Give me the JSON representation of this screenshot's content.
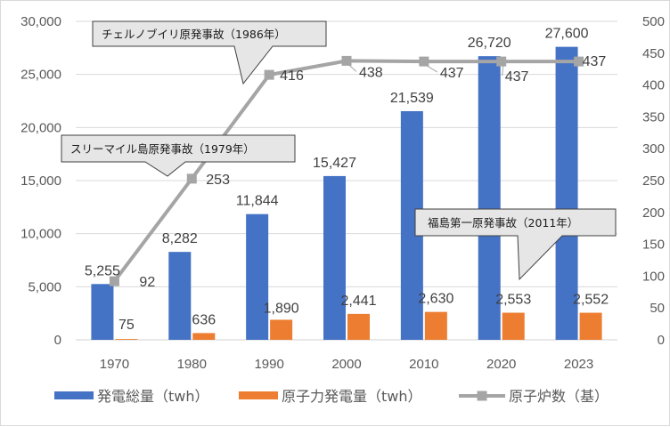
{
  "chart_data": {
    "type": "bar",
    "categories": [
      "1970",
      "1980",
      "1990",
      "2000",
      "2010",
      "2020",
      "2023"
    ],
    "series": [
      {
        "name": "発電総量（twh）",
        "kind": "bar",
        "axis": "left",
        "color": "#4472c4",
        "values": [
          5255,
          8282,
          11844,
          15427,
          21539,
          26720,
          27600
        ],
        "labels": [
          "5,255",
          "8,282",
          "11,844",
          "15,427",
          "21,539",
          "26,720",
          "27,600"
        ]
      },
      {
        "name": "原子力発電量（twh）",
        "kind": "bar",
        "axis": "left",
        "color": "#ed7d31",
        "values": [
          75,
          636,
          1890,
          2441,
          2630,
          2553,
          2552
        ],
        "labels": [
          "75",
          "636",
          "1,890",
          "2,441",
          "2,630",
          "2,553",
          "2,552"
        ]
      },
      {
        "name": "原子炉数（基）",
        "kind": "line",
        "axis": "right",
        "color": "#a5a5a5",
        "values": [
          92,
          253,
          416,
          438,
          437,
          437,
          437
        ],
        "labels": [
          "92",
          "253",
          "416",
          "438",
          "437",
          "437",
          "437"
        ]
      }
    ],
    "y_left": {
      "min": 0,
      "max": 30000,
      "ticks": [
        "0",
        "5,000",
        "10,000",
        "15,000",
        "20,000",
        "25,000",
        "30,000"
      ]
    },
    "y_right": {
      "min": 0,
      "max": 500,
      "ticks": [
        "0",
        "50",
        "100",
        "150",
        "200",
        "250",
        "300",
        "350",
        "400",
        "450",
        "500"
      ]
    },
    "grid": true,
    "legend": "bottom",
    "annotations": [
      {
        "text": "チェルノブイリ原発事故（1986年）"
      },
      {
        "text": "スリーマイル島原発事故（1979年）"
      },
      {
        "text": "福島第一原発事故（2011年）"
      }
    ]
  }
}
